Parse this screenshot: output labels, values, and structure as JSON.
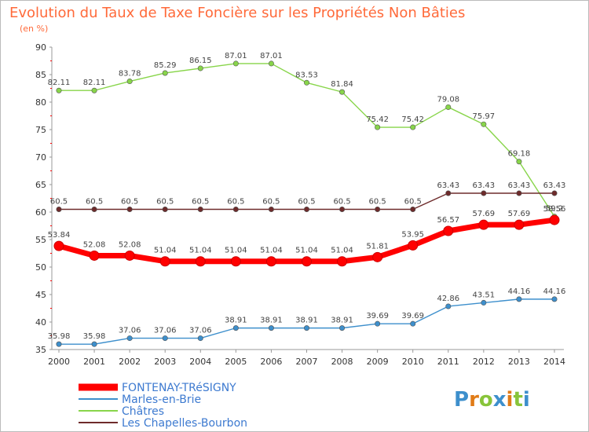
{
  "chart_data": {
    "type": "line",
    "title": "Evolution du Taux de Taxe Foncière sur les Propriétés Non Bâties",
    "subtitle": "(en %)",
    "xlabel": "",
    "ylabel": "",
    "x": [
      "2000",
      "2001",
      "2002",
      "2003",
      "2004",
      "2005",
      "2006",
      "2007",
      "2008",
      "2009",
      "2010",
      "2011",
      "2012",
      "2013",
      "2014"
    ],
    "ylim": [
      35,
      90
    ],
    "yticks": [
      35,
      40,
      45,
      50,
      55,
      60,
      65,
      70,
      75,
      80,
      85,
      90
    ],
    "grid": false,
    "legend_position": "bottom-left",
    "series": [
      {
        "name": "Marles-en-Brie",
        "color": "#3d8fcc",
        "values": [
          35.98,
          35.98,
          37.06,
          37.06,
          37.06,
          38.91,
          38.91,
          38.91,
          38.91,
          39.69,
          39.69,
          42.86,
          43.51,
          44.16,
          44.16
        ],
        "labels": [
          "35.98",
          "35.98",
          "37.06",
          "37.06",
          "37.06",
          "38.91",
          "38.91",
          "38.91",
          "38.91",
          "39.69",
          "39.69",
          "42.86",
          "43.51",
          "44.16",
          "44.16"
        ]
      },
      {
        "name": "Châtres",
        "color": "#88d54a",
        "values": [
          82.11,
          82.11,
          83.78,
          85.29,
          86.15,
          87.01,
          87.01,
          83.53,
          81.84,
          75.42,
          75.42,
          79.08,
          75.97,
          69.18,
          59.2
        ],
        "labels": [
          "82.11",
          "82.11",
          "83.78",
          "85.29",
          "86.15",
          "87.01",
          "87.01",
          "83.53",
          "81.84",
          "75.42",
          "75.42",
          "79.08",
          "75.97",
          "69.18",
          "59.2"
        ]
      },
      {
        "name": "Les Chapelles-Bourbon",
        "color": "#6e2b2b",
        "values": [
          60.5,
          60.5,
          60.5,
          60.5,
          60.5,
          60.5,
          60.5,
          60.5,
          60.5,
          60.5,
          60.5,
          63.43,
          63.43,
          63.43,
          63.43
        ],
        "labels": [
          "60.5",
          "60.5",
          "60.5",
          "60.5",
          "60.5",
          "60.5",
          "60.5",
          "60.5",
          "60.5",
          "60.5",
          "60.5",
          "63.43",
          "63.43",
          "63.43",
          "63.43"
        ]
      },
      {
        "name": "FONTENAY-TRéSIGNY",
        "color": "#ff0000",
        "values": [
          53.84,
          52.08,
          52.08,
          51.04,
          51.04,
          51.04,
          51.04,
          51.04,
          51.04,
          51.81,
          53.95,
          56.57,
          57.69,
          57.69,
          58.56
        ],
        "labels": [
          "53.84",
          "52.08",
          "52.08",
          "51.04",
          "51.04",
          "51.04",
          "51.04",
          "51.04",
          "51.04",
          "51.81",
          "53.95",
          "56.57",
          "57.69",
          "57.69",
          "58.56"
        ]
      }
    ],
    "legend": [
      {
        "name": "FONTENAY-TRéSIGNY",
        "color": "#ff0000"
      },
      {
        "name": "Marles-en-Brie",
        "color": "#3d8fcc"
      },
      {
        "name": "Châtres",
        "color": "#88d54a"
      },
      {
        "name": "Les Chapelles-Bourbon",
        "color": "#6e2b2b"
      }
    ]
  },
  "brand": {
    "logo_letters": [
      "P",
      "r",
      "o",
      "x",
      "i",
      "t",
      "i"
    ],
    "logo_colors": [
      "#3d8fcc",
      "#e07b17",
      "#88c43a",
      "#3d8fcc",
      "#e07b17",
      "#88c43a",
      "#3d8fcc"
    ]
  }
}
